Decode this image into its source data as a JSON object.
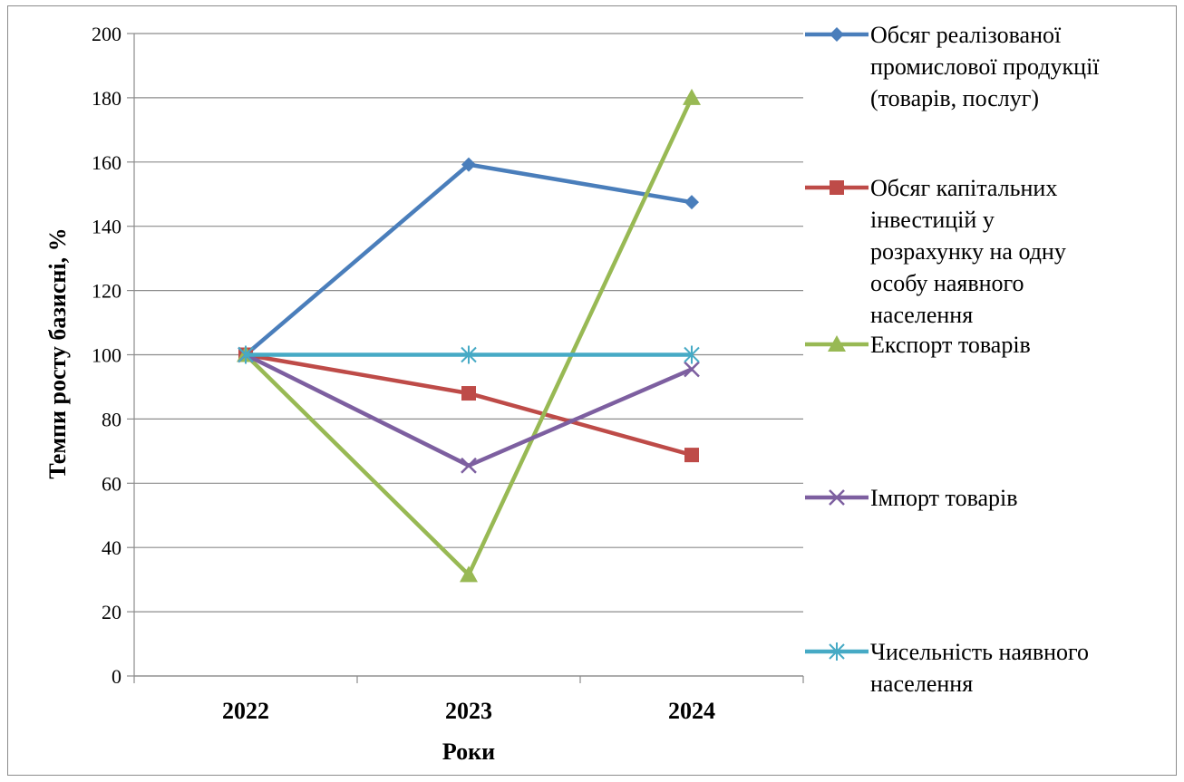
{
  "chart_data": {
    "type": "line",
    "title": "",
    "xlabel": "Роки",
    "ylabel": "Темпи росту базисні, %",
    "categories": [
      "2022",
      "2023",
      "2024"
    ],
    "ylim": [
      0,
      200
    ],
    "yticks": [
      0,
      20,
      40,
      60,
      80,
      100,
      120,
      140,
      160,
      180,
      200
    ],
    "grid": true,
    "legend_position": "right",
    "series": [
      {
        "name": "Обсяг реалізованої промислової продукції (товарів, послуг)",
        "values": [
          100,
          159.2,
          147.5
        ],
        "color": "#4a7ebb",
        "marker": "diamond",
        "legend_lines": [
          "Обсяг реалізованої",
          "промислової продукції",
          "(товарів, послуг)"
        ]
      },
      {
        "name": "Обсяг капітальних інвестицій у розрахунку на одну особу наявного населення",
        "values": [
          100,
          88,
          68.8
        ],
        "color": "#be4b48",
        "marker": "square",
        "legend_lines": [
          "Обсяг капітальних",
          "інвестицій у",
          "розрахунку на одну",
          "особу наявного",
          "населення"
        ]
      },
      {
        "name": "Експорт товарів",
        "values": [
          100,
          31.5,
          180
        ],
        "color": "#98b954",
        "marker": "triangle",
        "legend_lines": [
          "Експорт товарів"
        ]
      },
      {
        "name": "Імпорт товарів",
        "values": [
          100,
          65.5,
          95.5
        ],
        "color": "#7d5fa0",
        "marker": "x",
        "legend_lines": [
          "Імпорт товарів"
        ]
      },
      {
        "name": "Чисельність наявного населення",
        "values": [
          100,
          100,
          100
        ],
        "color": "#46aac5",
        "marker": "star",
        "legend_lines": [
          "Чисельність наявного",
          "населення"
        ]
      }
    ]
  }
}
